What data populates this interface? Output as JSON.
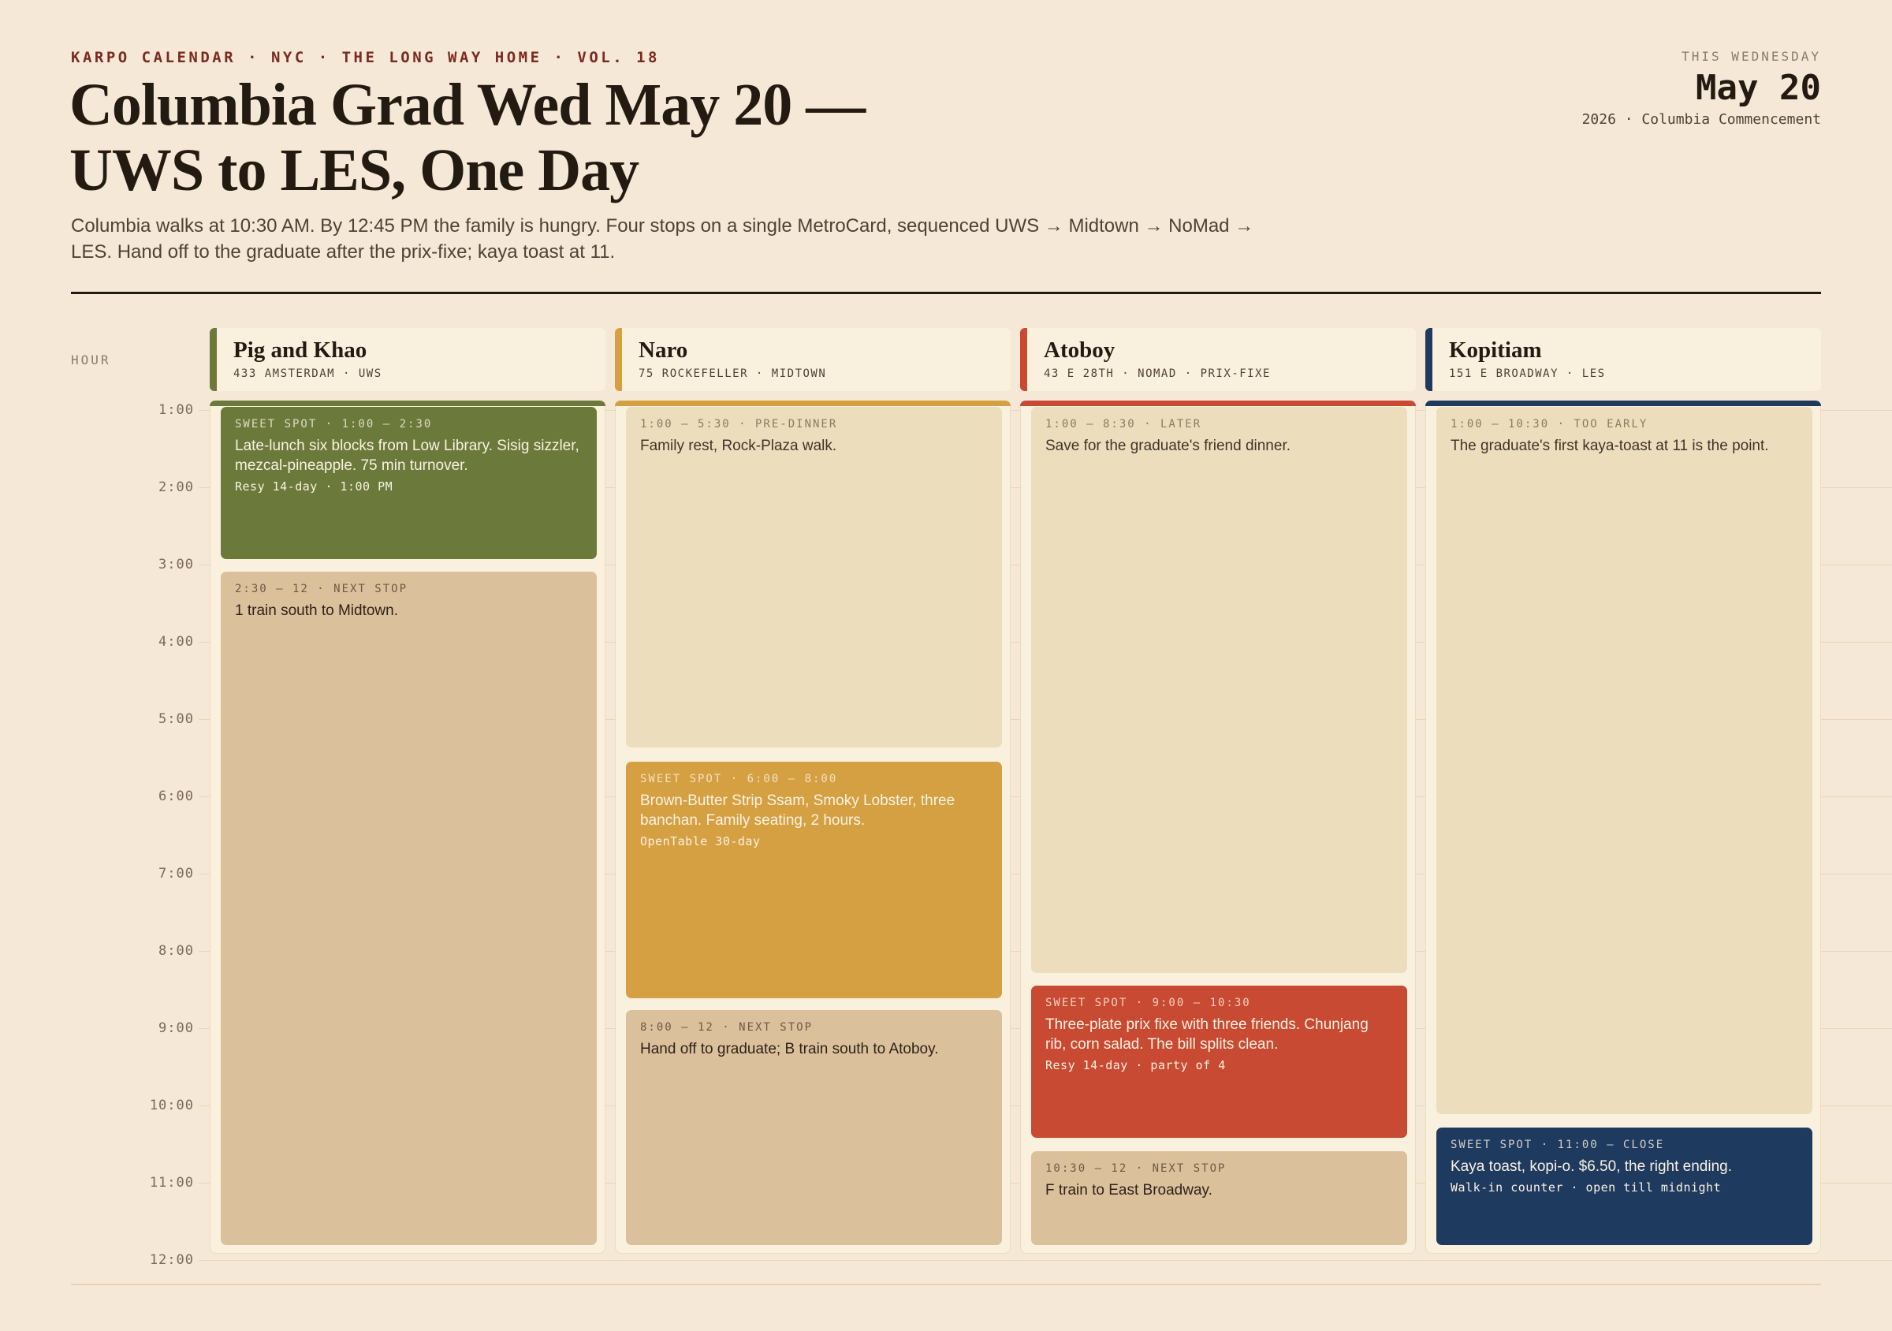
{
  "header": {
    "kicker": "KARPO CALENDAR · NYC · THE LONG WAY HOME · VOL. 18",
    "title": "Columbia Grad Wed May 20 — UWS to LES, One Day",
    "lede": "Columbia walks at 10:30 AM. By 12:45 PM the family is hungry. Four stops on a single MetroCard, sequenced UWS → Midtown → NoMad → LES. Hand off to the graduate after the prix-fixe; kaya toast at 11.",
    "top_right": {
      "label": "THIS WEDNESDAY",
      "date": "May 20",
      "sub": "2026 · Columbia Commencement"
    }
  },
  "grid": {
    "hour_label": "HOUR",
    "hours": [
      "1:00",
      "2:00",
      "3:00",
      "4:00",
      "5:00",
      "6:00",
      "7:00",
      "8:00",
      "9:00",
      "10:00",
      "11:00",
      "12:00"
    ]
  },
  "colors": {
    "olive": "#6b7a3b",
    "mustard": "#d4a042",
    "vermilion": "#c94a32",
    "navy": "#1f3a5f"
  },
  "columns": [
    {
      "name": "Pig and Khao",
      "address": "433 AMSTERDAM · UWS",
      "blocks": [
        {
          "label": "SWEET SPOT · 1:00 – 2:30",
          "text": "Late-lunch six blocks from Low Library. Sisig sizzler, mezcal-pineapple. 75 min turnover.",
          "note": "Resy 14-day · 1:00 PM"
        },
        {
          "label": "2:30 – 12 · NEXT STOP",
          "text": "1 train south to Midtown."
        }
      ]
    },
    {
      "name": "Naro",
      "address": "75 ROCKEFELLER · MIDTOWN",
      "blocks": [
        {
          "label": "1:00 – 5:30 · PRE-DINNER",
          "text": "Family rest, Rock-Plaza walk."
        },
        {
          "label": "SWEET SPOT · 6:00 – 8:00",
          "text": "Brown-Butter Strip Ssam, Smoky Lobster, three banchan. Family seating, 2 hours.",
          "note": "OpenTable 30-day"
        },
        {
          "label": "8:00 – 12 · NEXT STOP",
          "text": "Hand off to graduate; B train south to Atoboy."
        }
      ]
    },
    {
      "name": "Atoboy",
      "address": "43 E 28TH · NOMAD · PRIX-FIXE",
      "blocks": [
        {
          "label": "1:00 – 8:30 · LATER",
          "text": "Save for the graduate's friend dinner."
        },
        {
          "label": "SWEET SPOT · 9:00 – 10:30",
          "text": "Three-plate prix fixe with three friends. Chunjang rib, corn salad. The bill splits clean.",
          "note": "Resy 14-day · party of 4"
        },
        {
          "label": "10:30 – 12 · NEXT STOP",
          "text": "F train to East Broadway."
        }
      ]
    },
    {
      "name": "Kopitiam",
      "address": "151 E BROADWAY · LES",
      "blocks": [
        {
          "label": "1:00 – 10:30 · TOO EARLY",
          "text": "The graduate's first kaya-toast at 11 is the point."
        },
        {
          "label": "SWEET SPOT · 11:00 – CLOSE",
          "text": "Kaya toast, kopi-o. $6.50, the right ending.",
          "note": "Walk-in counter · open till midnight"
        }
      ]
    }
  ]
}
